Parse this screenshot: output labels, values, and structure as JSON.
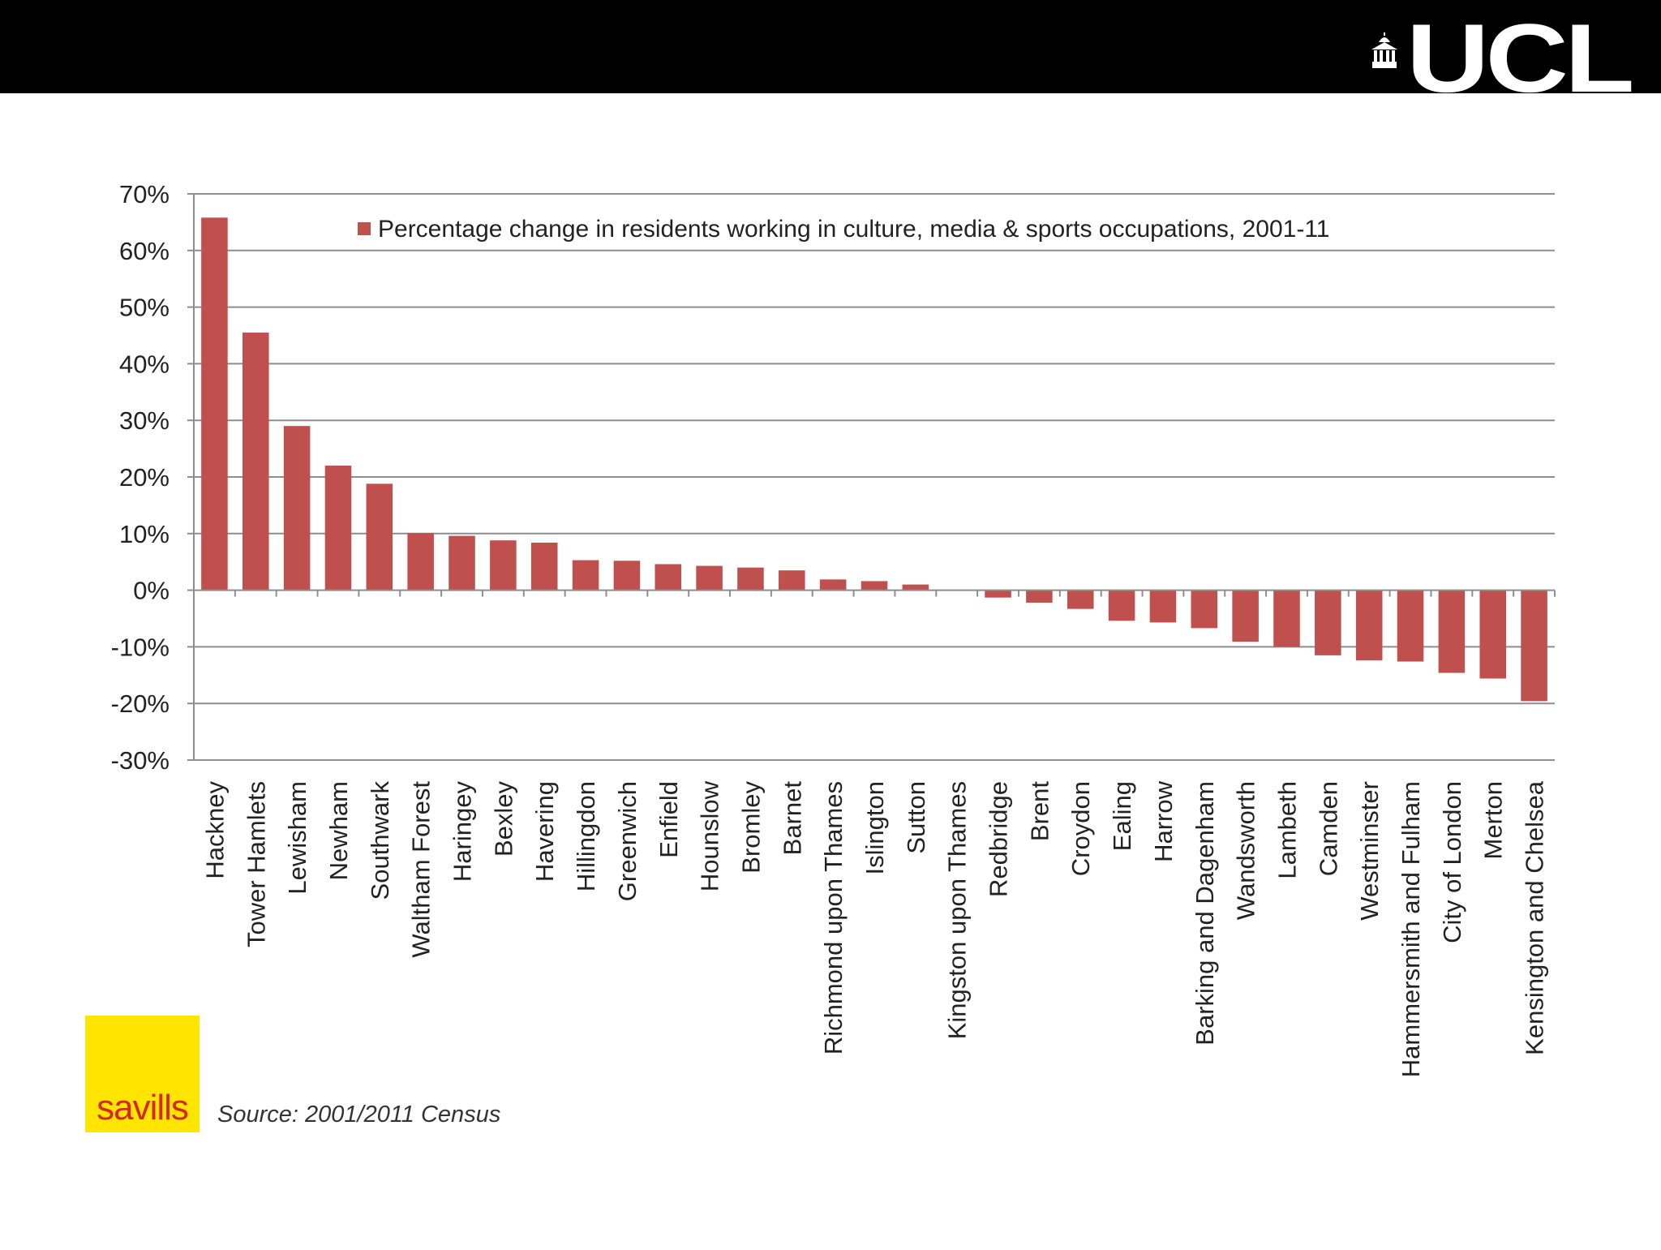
{
  "header": {
    "logo_text": "UCL",
    "bar_color": "#000000"
  },
  "chart_data": {
    "type": "bar",
    "legend": "Percentage change in residents working in culture, media & sports occupations, 2001-11",
    "legend_position": "top-right",
    "ylim": [
      -30,
      70
    ],
    "y_ticks": [
      70,
      60,
      50,
      40,
      30,
      20,
      10,
      0,
      -10,
      -20,
      -30
    ],
    "y_tick_labels": [
      "70%",
      "60%",
      "50%",
      "40%",
      "30%",
      "20%",
      "10%",
      "0%",
      "-10%",
      "-20%",
      "-30%"
    ],
    "grid": true,
    "bar_color": "#c0504d",
    "categories": [
      "Hackney",
      "Tower Hamlets",
      "Lewisham",
      "Newham",
      "Southwark",
      "Waltham Forest",
      "Haringey",
      "Bexley",
      "Havering",
      "Hillingdon",
      "Greenwich",
      "Enfield",
      "Hounslow",
      "Bromley",
      "Barnet",
      "Richmond upon Thames",
      "Islington",
      "Sutton",
      "Kingston upon Thames",
      "Redbridge",
      "Brent",
      "Croydon",
      "Ealing",
      "Harrow",
      "Barking and Dagenham",
      "Wandsworth",
      "Lambeth",
      "Camden",
      "Westminster",
      "Hammersmith and Fulham",
      "City of London",
      "Merton",
      "Kensington and Chelsea"
    ],
    "values": [
      65.8,
      45.5,
      29,
      22,
      18.8,
      10.1,
      9.6,
      8.8,
      8.4,
      5.3,
      5.2,
      4.6,
      4.3,
      4,
      3.5,
      1.9,
      1.6,
      1,
      0,
      -1.3,
      -2.2,
      -3.3,
      -5.4,
      -5.7,
      -6.7,
      -9.1,
      -10,
      -11.5,
      -12.4,
      -12.6,
      -14.6,
      -15.6,
      -19.6
    ]
  },
  "footer": {
    "brand_logo_text": "savills",
    "brand_color": "#ffe500",
    "source": "Source: 2001/2011 Census"
  }
}
